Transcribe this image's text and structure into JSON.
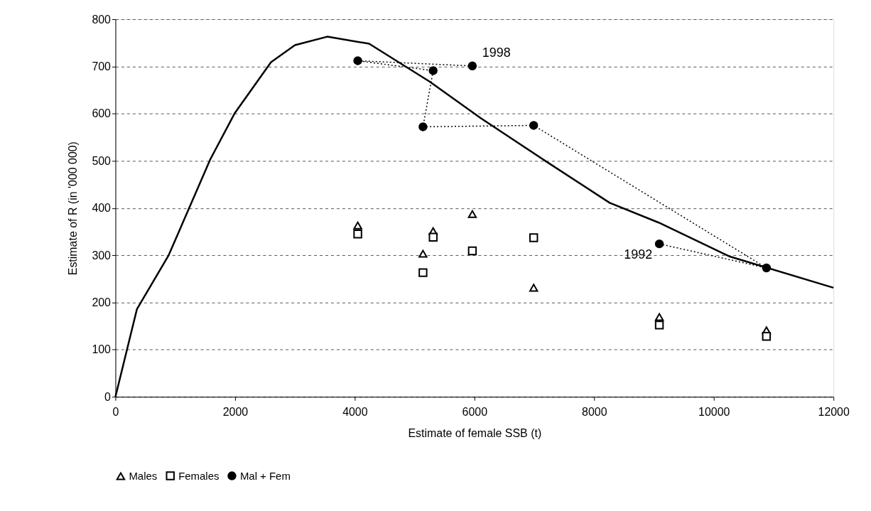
{
  "chart_data": {
    "type": "scatter",
    "xlabel": "Estimate of female SSB (t)",
    "ylabel": "Estimate of R (in '000 000)",
    "xlim": [
      0,
      12000
    ],
    "xticks": [
      0,
      2000,
      4000,
      6000,
      8000,
      10000,
      12000
    ],
    "ylim": [
      0,
      800
    ],
    "yticks": [
      0,
      100,
      200,
      300,
      400,
      500,
      600,
      700,
      800
    ],
    "grid": "y",
    "legend": "bottom",
    "series": [
      {
        "type": "line",
        "color": "#000000",
        "marker": "none",
        "line_style": "solid",
        "x": [
          0,
          360,
          890,
          1585,
          1990,
          2600,
          3000,
          3540,
          4240,
          5250,
          6110,
          7170,
          8260,
          9080,
          10270,
          12000
        ],
        "values": [
          0,
          186,
          300,
          503,
          600,
          709,
          745,
          763,
          748,
          668,
          590,
          501,
          411,
          369,
          297,
          231
        ]
      },
      {
        "name": "Males",
        "marker": "triangle",
        "color": "#000000",
        "x": [
          4050,
          5310,
          5965,
          5140,
          6990,
          9090,
          10880
        ],
        "values": [
          363,
          351,
          387,
          303,
          231,
          169,
          141
        ]
      },
      {
        "name": "Females",
        "marker": "square",
        "color": "#000000",
        "x": [
          4050,
          5310,
          5965,
          5140,
          6990,
          9090,
          10880
        ],
        "values": [
          345,
          338,
          309,
          263,
          337,
          152,
          128
        ]
      },
      {
        "name": "Mal + Fem",
        "type": "line",
        "marker": "circle",
        "line_style": "dotted",
        "color": "#000000",
        "x": [
          9090,
          10880,
          6990,
          5140,
          5310,
          4050,
          5965
        ],
        "values": [
          324,
          273,
          575,
          572,
          691,
          712,
          701
        ]
      }
    ],
    "annotations": [
      {
        "text": "1998",
        "x": 5965,
        "y": 701
      },
      {
        "text": "1992",
        "x": 9090,
        "y": 324
      }
    ]
  }
}
